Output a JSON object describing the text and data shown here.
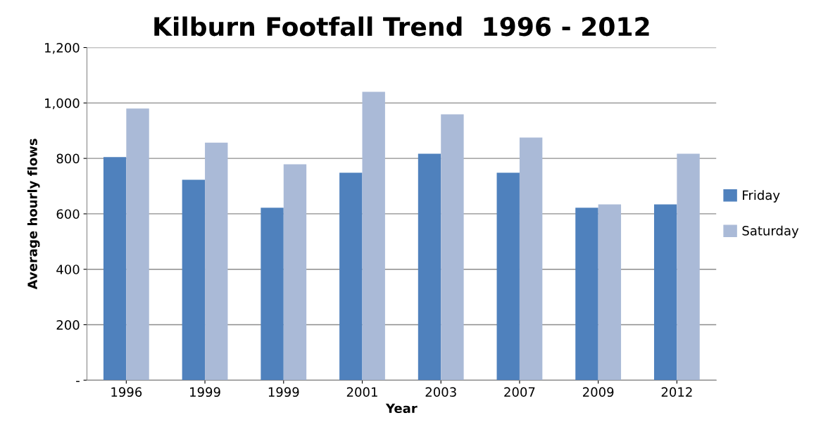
{
  "chart_data": {
    "type": "bar",
    "title": "Kilburn Footfall Trend  1996 - 2012",
    "xlabel": "Year",
    "ylabel": "Average hourly flows",
    "categories": [
      "1996",
      "1999",
      "1999",
      "2001",
      "2003",
      "2007",
      "2009",
      "2012"
    ],
    "series": [
      {
        "name": "Friday",
        "color": "#4f81bd",
        "values": [
          805,
          723,
          622,
          748,
          817,
          748,
          622,
          634
        ]
      },
      {
        "name": "Saturday",
        "color": "#aabad7",
        "values": [
          980,
          857,
          779,
          1040,
          959,
          875,
          634,
          817
        ]
      }
    ],
    "ylim": [
      0,
      1200
    ],
    "yticks": [
      {
        "value": 0,
        "label": "-"
      },
      {
        "value": 200,
        "label": "200"
      },
      {
        "value": 400,
        "label": "400"
      },
      {
        "value": 600,
        "label": "600"
      },
      {
        "value": 800,
        "label": "800"
      },
      {
        "value": 1000,
        "label": "1,000"
      },
      {
        "value": 1200,
        "label": "1,200"
      }
    ],
    "grid": "y",
    "legend": "right"
  }
}
